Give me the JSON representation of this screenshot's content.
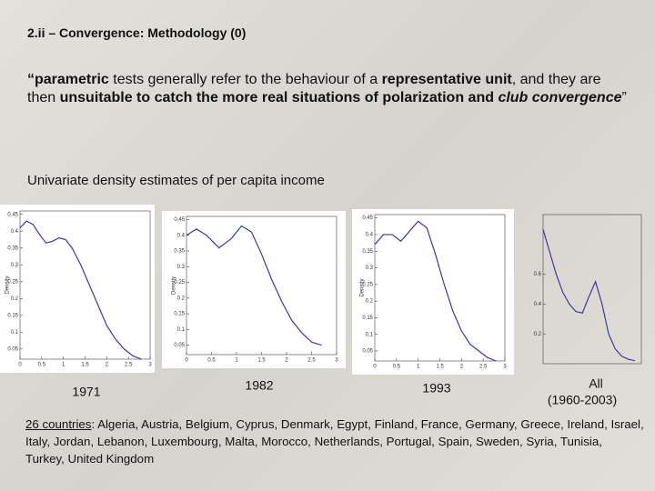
{
  "title": "2.ii – Convergence: Methodology (0)",
  "quote": [
    "“parametric",
    " tests generally refer to the behaviour of a ",
    "representative unit",
    ", and they are then ",
    "unsuitable to catch the more real situations of polarization and ",
    "club convergence",
    "”"
  ],
  "subtitle": "Univariate density estimates of per capita income",
  "chart_data": [
    {
      "type": "line",
      "caption": [
        "1971"
      ],
      "y_label": "Density",
      "xlim": [
        0,
        3
      ],
      "ylim": [
        0.02,
        0.46
      ],
      "xticks": [
        0,
        0.5,
        1,
        1.5,
        2,
        2.5,
        3
      ],
      "yticks": [
        0.05,
        0.1,
        0.15,
        0.2,
        0.25,
        0.3,
        0.35,
        0.4,
        0.45
      ],
      "x": [
        0,
        0.15,
        0.3,
        0.45,
        0.6,
        0.75,
        0.9,
        1.05,
        1.2,
        1.4,
        1.6,
        1.8,
        2.0,
        2.2,
        2.4,
        2.6,
        2.8
      ],
      "series": [
        {
          "color": "#3a3aa0",
          "values": [
            0.41,
            0.43,
            0.42,
            0.39,
            0.365,
            0.37,
            0.38,
            0.375,
            0.35,
            0.3,
            0.24,
            0.18,
            0.12,
            0.08,
            0.05,
            0.03,
            0.02
          ]
        }
      ]
    },
    {
      "type": "line",
      "caption": [
        "1982"
      ],
      "y_label": "Density",
      "xlim": [
        0,
        3
      ],
      "ylim": [
        0.02,
        0.46
      ],
      "xticks": [
        0,
        0.5,
        1,
        1.5,
        2,
        2.5,
        3
      ],
      "yticks": [
        0.05,
        0.1,
        0.15,
        0.2,
        0.25,
        0.3,
        0.35,
        0.4,
        0.45
      ],
      "x": [
        0,
        0.2,
        0.4,
        0.65,
        0.9,
        1.1,
        1.3,
        1.5,
        1.7,
        1.9,
        2.1,
        2.3,
        2.5,
        2.7
      ],
      "series": [
        {
          "color": "#3a3aa0",
          "values": [
            0.4,
            0.42,
            0.4,
            0.36,
            0.39,
            0.43,
            0.41,
            0.34,
            0.26,
            0.19,
            0.13,
            0.09,
            0.06,
            0.05
          ]
        }
      ]
    },
    {
      "type": "line",
      "caption": [
        "1993"
      ],
      "y_label": "Density",
      "xlim": [
        0,
        3
      ],
      "ylim": [
        0.02,
        0.46
      ],
      "xticks": [
        0,
        0.5,
        1,
        1.5,
        2,
        2.5,
        3
      ],
      "yticks": [
        0.05,
        0.1,
        0.15,
        0.2,
        0.25,
        0.3,
        0.35,
        0.4,
        0.45
      ],
      "x": [
        0,
        0.2,
        0.4,
        0.6,
        0.8,
        1.0,
        1.2,
        1.4,
        1.6,
        1.8,
        2.0,
        2.2,
        2.4,
        2.6,
        2.8
      ],
      "series": [
        {
          "color": "#3a3aa0",
          "values": [
            0.37,
            0.4,
            0.4,
            0.38,
            0.41,
            0.44,
            0.42,
            0.34,
            0.25,
            0.17,
            0.11,
            0.07,
            0.05,
            0.03,
            0.02
          ]
        }
      ]
    },
    {
      "type": "line",
      "caption": [
        "All",
        "(1960-2003)"
      ],
      "xlim": [
        0,
        3
      ],
      "ylim": [
        0,
        1
      ],
      "yticks": [
        0.2,
        0.4,
        0.6
      ],
      "x": [
        0,
        0.2,
        0.4,
        0.6,
        0.8,
        1.0,
        1.2,
        1.4,
        1.6,
        1.8,
        2.0,
        2.2,
        2.4,
        2.6,
        2.8
      ],
      "series": [
        {
          "color": "#3a3aa0",
          "values": [
            0.9,
            0.75,
            0.6,
            0.48,
            0.4,
            0.35,
            0.34,
            0.45,
            0.55,
            0.4,
            0.2,
            0.1,
            0.05,
            0.03,
            0.02
          ]
        }
      ]
    }
  ],
  "countries_label": "26 countries",
  "countries": ": Algeria, Austria, Belgium, Cyprus, Denmark, Egypt, Finland, France, Germany, Greece, Ireland, Israel, Italy, Jordan, Lebanon, Luxembourg, Malta, Morocco, Netherlands, Portugal, Spain, Sweden, Syria, Tunisia, Turkey, United Kingdom"
}
